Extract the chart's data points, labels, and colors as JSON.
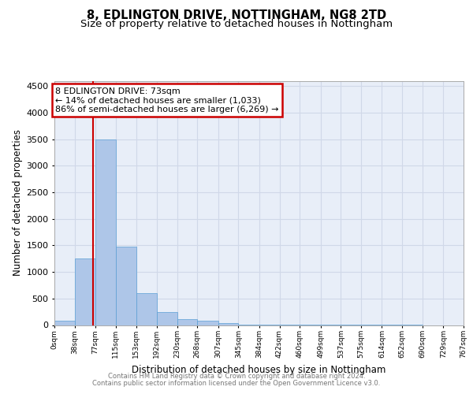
{
  "title_line1": "8, EDLINGTON DRIVE, NOTTINGHAM, NG8 2TD",
  "title_line2": "Size of property relative to detached houses in Nottingham",
  "xlabel": "Distribution of detached houses by size in Nottingham",
  "ylabel": "Number of detached properties",
  "footer_line1": "Contains HM Land Registry data © Crown copyright and database right 2024.",
  "footer_line2": "Contains public sector information licensed under the Open Government Licence v3.0.",
  "bin_edges": [
    0,
    38,
    77,
    115,
    153,
    192,
    230,
    268,
    307,
    345,
    384,
    422,
    460,
    499,
    537,
    575,
    614,
    652,
    690,
    729,
    767
  ],
  "bar_heights": [
    75,
    1250,
    3500,
    1470,
    600,
    240,
    110,
    80,
    30,
    10,
    5,
    5,
    3,
    2,
    2,
    1,
    1,
    1,
    0,
    0
  ],
  "bar_color": "#aec6e8",
  "bar_edge_color": "#5a9fd4",
  "red_line_x": 73,
  "annotation_title": "8 EDLINGTON DRIVE: 73sqm",
  "annotation_line1": "← 14% of detached houses are smaller (1,033)",
  "annotation_line2": "86% of semi-detached houses are larger (6,269) →",
  "annotation_box_color": "#ffffff",
  "annotation_border_color": "#cc0000",
  "red_line_color": "#cc0000",
  "ylim": [
    0,
    4600
  ],
  "yticks": [
    0,
    500,
    1000,
    1500,
    2000,
    2500,
    3000,
    3500,
    4000,
    4500
  ],
  "grid_color": "#d0d8e8",
  "background_color": "#e8eef8",
  "title_fontsize": 10.5,
  "subtitle_fontsize": 9.5,
  "axis_label_fontsize": 8.5,
  "footer_fontsize": 6.0,
  "ytick_fontsize": 8,
  "xtick_fontsize": 6.5
}
